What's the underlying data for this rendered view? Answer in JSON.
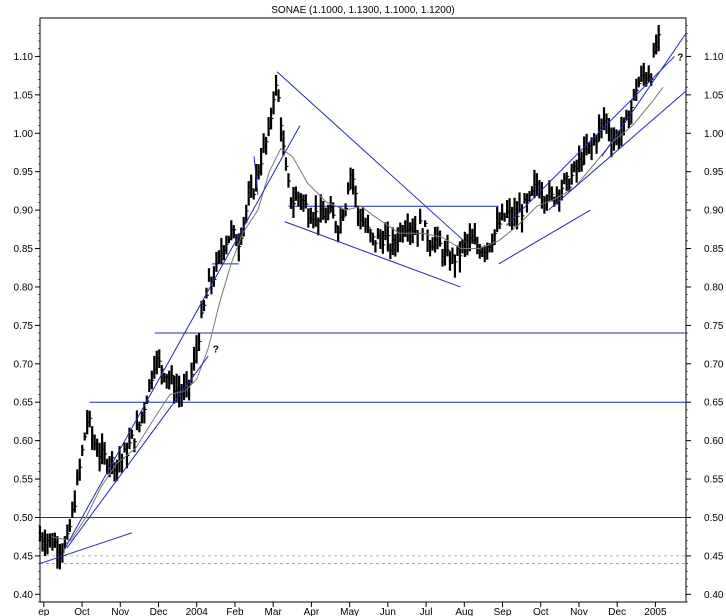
{
  "chart_data": {
    "type": "ohlc-bar",
    "title": "SONAE (1.1000, 1.1300, 1.1000, 1.1200)",
    "ylim": [
      0.39,
      1.15
    ],
    "y_ticks": [
      0.4,
      0.45,
      0.5,
      0.55,
      0.6,
      0.65,
      0.7,
      0.75,
      0.8,
      0.85,
      0.9,
      0.95,
      1.0,
      1.05,
      1.1
    ],
    "y_tick_labels": [
      "0.40",
      "0.45",
      "0.50",
      "0.55",
      "0.60",
      "0.65",
      "0.70",
      "0.75",
      "0.80",
      "0.85",
      "0.90",
      "0.95",
      "1.00",
      "1.05",
      "1.10"
    ],
    "x_range": [
      0.0,
      16.9
    ],
    "x_ticks": [
      {
        "label": "ep",
        "pos": 0.1
      },
      {
        "label": "Oct",
        "pos": 1.1
      },
      {
        "label": "Nov",
        "pos": 2.1
      },
      {
        "label": "Dec",
        "pos": 3.1
      },
      {
        "label": "2004",
        "pos": 4.1
      },
      {
        "label": "Feb",
        "pos": 5.1
      },
      {
        "label": "Mar",
        "pos": 6.1
      },
      {
        "label": "Apr",
        "pos": 7.1
      },
      {
        "label": "May",
        "pos": 8.1
      },
      {
        "label": "Jun",
        "pos": 9.1
      },
      {
        "label": "Jul",
        "pos": 10.1
      },
      {
        "label": "Aug",
        "pos": 11.1
      },
      {
        "label": "Sep",
        "pos": 12.1
      },
      {
        "label": "Oct",
        "pos": 13.1
      },
      {
        "label": "Nov",
        "pos": 14.1
      },
      {
        "label": "Dec",
        "pos": 15.1
      },
      {
        "label": "2005",
        "pos": 16.1
      }
    ],
    "close_path": [
      [
        0.0,
        0.475
      ],
      [
        0.3,
        0.47
      ],
      [
        0.55,
        0.46
      ],
      [
        0.7,
        0.465
      ],
      [
        0.9,
        0.52
      ],
      [
        1.0,
        0.55
      ],
      [
        1.15,
        0.6
      ],
      [
        1.25,
        0.63
      ],
      [
        1.4,
        0.6
      ],
      [
        1.6,
        0.58
      ],
      [
        1.8,
        0.575
      ],
      [
        2.0,
        0.57
      ],
      [
        2.2,
        0.58
      ],
      [
        2.4,
        0.6
      ],
      [
        2.6,
        0.62
      ],
      [
        2.75,
        0.65
      ],
      [
        2.9,
        0.68
      ],
      [
        3.0,
        0.705
      ],
      [
        3.2,
        0.695
      ],
      [
        3.4,
        0.68
      ],
      [
        3.6,
        0.665
      ],
      [
        3.8,
        0.66
      ],
      [
        4.0,
        0.69
      ],
      [
        4.2,
        0.75
      ],
      [
        4.4,
        0.8
      ],
      [
        4.6,
        0.82
      ],
      [
        4.8,
        0.855
      ],
      [
        5.0,
        0.87
      ],
      [
        5.2,
        0.86
      ],
      [
        5.4,
        0.9
      ],
      [
        5.6,
        0.93
      ],
      [
        5.8,
        0.97
      ],
      [
        6.0,
        1.0
      ],
      [
        6.1,
        1.05
      ],
      [
        6.2,
        1.06
      ],
      [
        6.3,
        1.02
      ],
      [
        6.4,
        0.96
      ],
      [
        6.5,
        0.93
      ],
      [
        6.6,
        0.91
      ],
      [
        6.8,
        0.92
      ],
      [
        7.0,
        0.9
      ],
      [
        7.2,
        0.895
      ],
      [
        7.4,
        0.89
      ],
      [
        7.6,
        0.895
      ],
      [
        7.8,
        0.88
      ],
      [
        8.0,
        0.91
      ],
      [
        8.1,
        0.95
      ],
      [
        8.2,
        0.94
      ],
      [
        8.3,
        0.9
      ],
      [
        8.5,
        0.88
      ],
      [
        8.7,
        0.86
      ],
      [
        9.0,
        0.865
      ],
      [
        9.2,
        0.85
      ],
      [
        9.4,
        0.87
      ],
      [
        9.6,
        0.885
      ],
      [
        9.8,
        0.875
      ],
      [
        10.0,
        0.88
      ],
      [
        10.2,
        0.86
      ],
      [
        10.4,
        0.86
      ],
      [
        10.6,
        0.84
      ],
      [
        10.8,
        0.835
      ],
      [
        11.0,
        0.845
      ],
      [
        11.2,
        0.86
      ],
      [
        11.4,
        0.855
      ],
      [
        11.6,
        0.85
      ],
      [
        11.8,
        0.86
      ],
      [
        12.0,
        0.88
      ],
      [
        12.2,
        0.895
      ],
      [
        12.4,
        0.89
      ],
      [
        12.6,
        0.9
      ],
      [
        12.8,
        0.91
      ],
      [
        13.0,
        0.935
      ],
      [
        13.2,
        0.92
      ],
      [
        13.4,
        0.915
      ],
      [
        13.6,
        0.93
      ],
      [
        13.8,
        0.935
      ],
      [
        14.0,
        0.95
      ],
      [
        14.2,
        0.97
      ],
      [
        14.4,
        0.98
      ],
      [
        14.6,
        1.0
      ],
      [
        14.8,
        1.02
      ],
      [
        15.0,
        0.99
      ],
      [
        15.2,
        1.0
      ],
      [
        15.4,
        1.02
      ],
      [
        15.6,
        1.06
      ],
      [
        15.8,
        1.075
      ],
      [
        16.0,
        1.08
      ],
      [
        16.1,
        1.11
      ],
      [
        16.2,
        1.12
      ]
    ],
    "moving_average": [
      [
        0.3,
        0.475
      ],
      [
        0.8,
        0.47
      ],
      [
        1.2,
        0.5
      ],
      [
        1.6,
        0.54
      ],
      [
        2.0,
        0.57
      ],
      [
        2.5,
        0.59
      ],
      [
        3.0,
        0.63
      ],
      [
        3.4,
        0.66
      ],
      [
        3.8,
        0.665
      ],
      [
        4.1,
        0.68
      ],
      [
        4.4,
        0.72
      ],
      [
        4.7,
        0.78
      ],
      [
        5.0,
        0.83
      ],
      [
        5.3,
        0.87
      ],
      [
        5.7,
        0.9
      ],
      [
        6.0,
        0.95
      ],
      [
        6.3,
        0.98
      ],
      [
        6.6,
        0.97
      ],
      [
        7.0,
        0.935
      ],
      [
        7.5,
        0.91
      ],
      [
        8.0,
        0.9
      ],
      [
        8.4,
        0.905
      ],
      [
        8.8,
        0.89
      ],
      [
        9.4,
        0.87
      ],
      [
        10.0,
        0.87
      ],
      [
        10.5,
        0.865
      ],
      [
        11.0,
        0.85
      ],
      [
        11.5,
        0.85
      ],
      [
        12.0,
        0.86
      ],
      [
        12.5,
        0.88
      ],
      [
        13.0,
        0.905
      ],
      [
        13.5,
        0.915
      ],
      [
        14.0,
        0.93
      ],
      [
        14.5,
        0.96
      ],
      [
        15.0,
        0.99
      ],
      [
        15.5,
        1.01
      ],
      [
        16.0,
        1.04
      ],
      [
        16.3,
        1.06
      ]
    ],
    "horizontal_levels": [
      {
        "y": 0.905,
        "x1": 6.5,
        "x2": 12.0
      },
      {
        "y": 0.74,
        "x1": 3.0,
        "x2": 16.9
      },
      {
        "y": 0.65,
        "x1": 1.3,
        "x2": 16.9
      },
      {
        "y": 0.5,
        "x1": 0.0,
        "x2": 16.9
      },
      {
        "y": 0.83,
        "x1": 4.5,
        "x2": 5.2
      }
    ],
    "dashed_levels": [
      0.45,
      0.44
    ],
    "trend_lines": [
      {
        "x1": 0.0,
        "y1": 0.44,
        "x2": 2.4,
        "y2": 0.48
      },
      {
        "x1": 0.7,
        "y1": 0.46,
        "x2": 4.4,
        "y2": 0.71
      },
      {
        "x1": 0.6,
        "y1": 0.455,
        "x2": 6.8,
        "y2": 1.01
      },
      {
        "x1": 6.2,
        "y1": 1.08,
        "x2": 11.2,
        "y2": 0.855
      },
      {
        "x1": 6.4,
        "y1": 0.885,
        "x2": 11.0,
        "y2": 0.8
      },
      {
        "x1": 12.0,
        "y1": 0.83,
        "x2": 14.4,
        "y2": 0.9
      },
      {
        "x1": 12.2,
        "y1": 0.88,
        "x2": 16.6,
        "y2": 1.1
      },
      {
        "x1": 13.3,
        "y1": 0.9,
        "x2": 16.9,
        "y2": 1.055
      },
      {
        "x1": 14.7,
        "y1": 0.97,
        "x2": 16.9,
        "y2": 1.13
      },
      {
        "x1": 5.6,
        "y1": 0.97,
        "x2": 5.7,
        "y2": 0.92
      }
    ],
    "annotations": [
      {
        "text": "?",
        "x": 4.6,
        "y": 0.715
      },
      {
        "text": "?",
        "x": 16.75,
        "y": 1.095
      }
    ]
  }
}
